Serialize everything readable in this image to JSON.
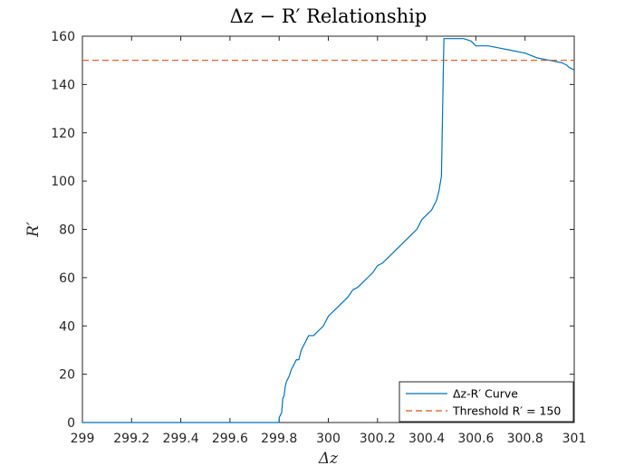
{
  "chart_data": {
    "type": "line",
    "title_tex": "Δz − R′ Relationship",
    "title": "Δz − R′ Relationship",
    "xlabel": "Δz",
    "ylabel": "R′",
    "xlim": [
      299,
      301
    ],
    "ylim": [
      0,
      160
    ],
    "x_ticks": [
      299,
      299.2,
      299.4,
      299.6,
      299.8,
      300,
      300.2,
      300.4,
      300.6,
      300.8,
      301
    ],
    "x_tick_labels": [
      "299",
      "299.2",
      "299.4",
      "299.6",
      "299.8",
      "300",
      "300.2",
      "300.4",
      "300.6",
      "300.8",
      "301"
    ],
    "y_ticks": [
      0,
      20,
      40,
      60,
      80,
      100,
      120,
      140,
      160
    ],
    "y_tick_labels": [
      "0",
      "20",
      "40",
      "60",
      "80",
      "100",
      "120",
      "140",
      "160"
    ],
    "grid": false,
    "legend_position": "bottom-right",
    "series": [
      {
        "name": "Δz-R′ Curve",
        "color": "#0072BD",
        "style": "solid",
        "x": [
          299,
          299.8,
          299.8,
          299.81,
          299.815,
          299.82,
          299.825,
          299.83,
          299.84,
          299.85,
          299.86,
          299.87,
          299.88,
          299.89,
          299.9,
          299.92,
          299.94,
          299.96,
          299.98,
          300,
          300.02,
          300.04,
          300.06,
          300.08,
          300.1,
          300.12,
          300.14,
          300.16,
          300.18,
          300.2,
          300.22,
          300.24,
          300.26,
          300.28,
          300.3,
          300.32,
          300.34,
          300.36,
          300.38,
          300.4,
          300.42,
          300.44,
          300.45,
          300.46,
          300.47,
          300.48,
          300.49,
          300.5,
          300.55,
          300.58,
          300.6,
          300.65,
          300.7,
          300.75,
          300.8,
          300.85,
          300.9,
          300.95,
          300.97,
          300.98,
          301
        ],
        "y": [
          0,
          0,
          2,
          4,
          10,
          11,
          15,
          17,
          19,
          22,
          24,
          26,
          26,
          30,
          32,
          36,
          36,
          38,
          40,
          44,
          46,
          48,
          50,
          52,
          55,
          56,
          58,
          60,
          62,
          65,
          66,
          68,
          70,
          72,
          74,
          76,
          78,
          80,
          84,
          86,
          88,
          92,
          96,
          102,
          159,
          159,
          159,
          159,
          159,
          158,
          156,
          156,
          155,
          154,
          153,
          151,
          150,
          149,
          148,
          147,
          146
        ]
      },
      {
        "name": "Threshold R′ = 150",
        "color": "#D95319",
        "style": "dashed",
        "x": [
          299,
          301
        ],
        "y": [
          150,
          150
        ]
      }
    ]
  }
}
